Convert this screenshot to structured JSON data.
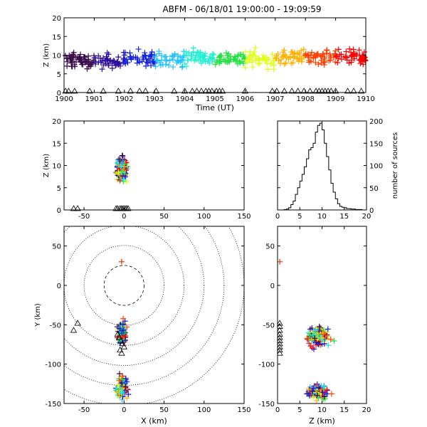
{
  "title": "ABFM - 06/18/01 19:00:00 - 19:09:59",
  "colors": {
    "axis": "#000000",
    "background": "#ffffff",
    "stations": "#000000",
    "palette": [
      "#3a0a4a",
      "#2a0a9a",
      "#1020e0",
      "#20c0ff",
      "#20f0d0",
      "#20e040",
      "#e0ff20",
      "#ffb000",
      "#ff4000",
      "#ff0000"
    ]
  },
  "chart_data": [
    {
      "type": "scatter",
      "panel": "time-height",
      "title": "ABFM - 06/18/01 19:00:00 - 19:09:59",
      "xlabel": "Time (UT)",
      "ylabel": "Z (km)",
      "xlim": [
        1900,
        1910
      ],
      "ylim": [
        0,
        20
      ],
      "xticks": [
        "1900",
        "1901",
        "1902",
        "1903",
        "1904",
        "1905",
        "1906",
        "1907",
        "1908",
        "1909",
        "1910"
      ],
      "yticks": [
        "0",
        "5",
        "10",
        "15",
        "20"
      ],
      "grid": false,
      "series": [
        {
          "time_range": [
            1900,
            1901
          ],
          "z_mean": 8.5,
          "z_spread": 3.5,
          "count": 60
        },
        {
          "time_range": [
            1901,
            1902
          ],
          "z_mean": 8.5,
          "z_spread": 3.5,
          "count": 45
        },
        {
          "time_range": [
            1902,
            1903
          ],
          "z_mean": 9.0,
          "z_spread": 4.0,
          "count": 45
        },
        {
          "time_range": [
            1903,
            1904
          ],
          "z_mean": 9.0,
          "z_spread": 3.5,
          "count": 40
        },
        {
          "time_range": [
            1904,
            1905
          ],
          "z_mean": 9.5,
          "z_spread": 4.0,
          "count": 50
        },
        {
          "time_range": [
            1905,
            1906
          ],
          "z_mean": 9.0,
          "z_spread": 3.5,
          "count": 45
        },
        {
          "time_range": [
            1906,
            1907
          ],
          "z_mean": 9.0,
          "z_spread": 4.0,
          "count": 50
        },
        {
          "time_range": [
            1907,
            1908
          ],
          "z_mean": 9.5,
          "z_spread": 4.0,
          "count": 45
        },
        {
          "time_range": [
            1908,
            1909
          ],
          "z_mean": 9.5,
          "z_spread": 3.5,
          "count": 50
        },
        {
          "time_range": [
            1909,
            1910
          ],
          "z_mean": 9.5,
          "z_spread": 3.5,
          "count": 55
        }
      ],
      "station_markers_time": [
        1900.05,
        1900.15,
        1900.35,
        1900.85,
        1901.3,
        1901.8,
        1902.2,
        1902.5,
        1902.7,
        1903.05,
        1903.65,
        1904.0,
        1904.25,
        1904.4,
        1904.55,
        1904.7,
        1904.8,
        1904.9,
        1905.05,
        1905.15,
        1905.25,
        1906.0,
        1906.9,
        1907.05,
        1907.3,
        1907.55,
        1907.75,
        1907.95,
        1908.15,
        1908.35,
        1908.45,
        1908.55,
        1908.65,
        1908.75,
        1908.85,
        1909.0,
        1909.4,
        1909.6,
        1909.85
      ]
    },
    {
      "type": "scatter",
      "panel": "x-z",
      "xlim": [
        -75,
        150
      ],
      "ylim": [
        0,
        20
      ],
      "xticks": [
        "-50",
        "0",
        "50",
        "100",
        "150"
      ],
      "yticks": [
        "0",
        "5",
        "10",
        "15",
        "20"
      ],
      "ylabel": "Z (km)",
      "cluster": {
        "x_center": -3,
        "x_spread": 10,
        "z_center": 9,
        "z_spread": 4
      },
      "station_markers_x": [
        -63,
        -58,
        -10,
        -8,
        -5,
        -3,
        -1,
        1,
        3,
        5
      ]
    },
    {
      "type": "bar",
      "panel": "histogram",
      "xlim": [
        0,
        20
      ],
      "ylim": [
        0,
        200
      ],
      "xticks": [
        "0",
        "5",
        "10",
        "15",
        "20"
      ],
      "yticks": [
        "0",
        "50",
        "100",
        "150",
        "200"
      ],
      "ylabel": "number of sources",
      "bin_width": 0.5,
      "bins_start": [
        0,
        0.5,
        1,
        1.5,
        2,
        2.5,
        3,
        3.5,
        4,
        4.5,
        5,
        5.5,
        6,
        6.5,
        7,
        7.5,
        8,
        8.5,
        9,
        9.5,
        10,
        10.5,
        11,
        11.5,
        12,
        12.5,
        13,
        13.5,
        14,
        14.5,
        15,
        15.5,
        16,
        16.5,
        17,
        17.5,
        18,
        18.5,
        19,
        19.5
      ],
      "values": [
        0,
        0,
        0,
        1,
        2,
        5,
        12,
        20,
        35,
        50,
        65,
        80,
        97,
        115,
        135,
        140,
        150,
        175,
        190,
        195,
        180,
        150,
        120,
        90,
        60,
        40,
        25,
        14,
        8,
        6,
        5,
        3,
        3,
        2,
        2,
        1,
        1,
        1,
        0,
        0
      ]
    },
    {
      "type": "scatter",
      "panel": "x-y",
      "xlabel": "X (km)",
      "ylabel": "Y (km)",
      "xlim": [
        -75,
        150
      ],
      "ylim": [
        -150,
        75
      ],
      "xticks": [
        "-50",
        "0",
        "50",
        "100",
        "150"
      ],
      "yticks": [
        "-150",
        "-100",
        "-50",
        "0",
        "50"
      ],
      "range_rings_km": [
        25,
        50,
        75,
        100,
        125,
        150
      ],
      "range_rings_style": "dotted",
      "inner_ring_style": "dashed",
      "clusters": [
        {
          "x_center": -3,
          "y_center": -60,
          "x_spread": 8,
          "y_spread": 25,
          "count": 120
        },
        {
          "x_center": -2,
          "y_center": -130,
          "x_spread": 12,
          "y_spread": 22,
          "count": 120
        }
      ],
      "outlier": {
        "x": -3,
        "y": 30
      },
      "stations": [
        [
          -58,
          -48
        ],
        [
          -63,
          -57
        ],
        [
          -8,
          -62
        ],
        [
          -6,
          -66
        ],
        [
          -4,
          -70
        ],
        [
          -2,
          -74
        ],
        [
          0,
          -78
        ],
        [
          -5,
          -82
        ],
        [
          -3,
          -86
        ]
      ]
    },
    {
      "type": "scatter",
      "panel": "z-y",
      "xlabel": "Z (km)",
      "xlim": [
        0,
        20
      ],
      "ylim": [
        -150,
        75
      ],
      "xticks": [
        "0",
        "5",
        "10",
        "15",
        "20"
      ],
      "yticks": [
        "-150",
        "-100",
        "-50",
        "0",
        "50"
      ],
      "clusters": [
        {
          "z_center": 9,
          "y_center": -65,
          "z_spread": 4.5,
          "y_spread": 20,
          "count": 140
        },
        {
          "z_center": 9,
          "y_center": -135,
          "z_spread": 4,
          "y_spread": 15,
          "count": 110
        }
      ],
      "outlier": {
        "z": 0.5,
        "y": 30
      },
      "station_z": 0,
      "stations_y": [
        -48,
        -52,
        -57,
        -62,
        -66,
        -70,
        -74,
        -78,
        -82,
        -86
      ]
    }
  ]
}
